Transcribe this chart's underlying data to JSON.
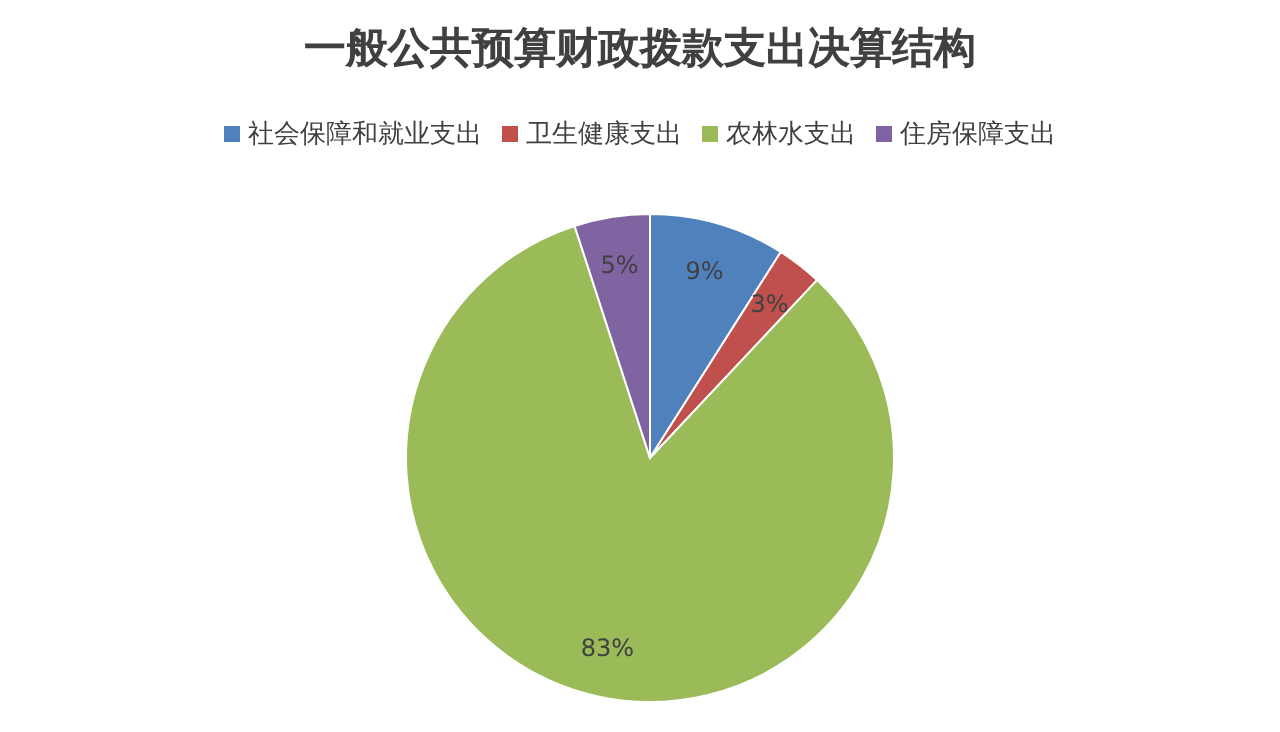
{
  "chart_data": {
    "type": "pie",
    "title": "一般公共预算财政拨款支出决算结构",
    "categories": [
      "社会保障和就业支出",
      "卫生健康支出",
      "农林水支出",
      "住房保障支出"
    ],
    "values": [
      9,
      3,
      83,
      5
    ],
    "value_labels": [
      "9%",
      "3%",
      "83%",
      "5%"
    ],
    "colors": [
      "#4f81bd",
      "#c0504d",
      "#9bbb59",
      "#8064a2"
    ],
    "legend": "top"
  }
}
